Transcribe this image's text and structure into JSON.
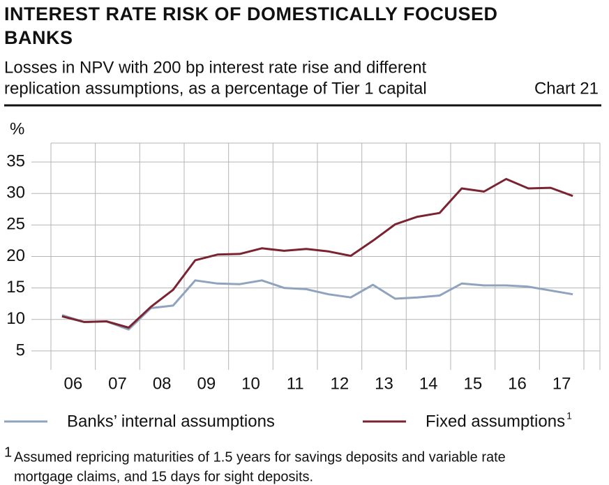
{
  "chart_data": {
    "type": "line",
    "title_lines": [
      "INTEREST RATE RISK OF DOMESTICALLY FOCUSED",
      "BANKS"
    ],
    "subtitle_lines": [
      "Losses in NPV with 200 bp interest rate rise and different",
      "replication assumptions, as a percentage of Tier 1 capital"
    ],
    "chart_number": "Chart 21",
    "y_unit": "%",
    "categories": [
      "06",
      null,
      "07",
      null,
      "08",
      null,
      "09",
      null,
      "10",
      null,
      "11",
      null,
      "12",
      null,
      "13",
      null,
      "14",
      null,
      "15",
      null,
      "16",
      null,
      "17",
      null
    ],
    "series": [
      {
        "name": "Banks’ internal assumptions",
        "color": "#8fa3bf",
        "values": [
          10.7,
          9.6,
          9.7,
          8.4,
          11.8,
          12.2,
          16.2,
          15.7,
          15.6,
          16.2,
          15.0,
          14.8,
          14.0,
          13.5,
          15.5,
          13.3,
          13.5,
          13.8,
          15.7,
          15.4,
          15.4,
          15.2,
          14.6,
          14.0
        ]
      },
      {
        "name": "Fixed assumptions",
        "color": "#7a2331",
        "values": [
          10.5,
          9.6,
          9.7,
          8.7,
          12.0,
          14.7,
          19.4,
          20.3,
          20.4,
          21.3,
          20.9,
          21.2,
          20.8,
          20.1,
          22.5,
          25.1,
          26.3,
          26.9,
          30.8,
          30.3,
          32.3,
          30.8,
          30.9,
          29.6
        ]
      }
    ],
    "ylim": [
      2,
      38
    ],
    "yticks": [
      5,
      10,
      15,
      20,
      25,
      30,
      35
    ],
    "grid": true,
    "footnote": {
      "marker": "1",
      "lines": [
        "Assumed repricing maturities of 1.5 years for savings deposits and variable rate",
        "mortgage claims, and 15 days for sight deposits."
      ]
    }
  }
}
